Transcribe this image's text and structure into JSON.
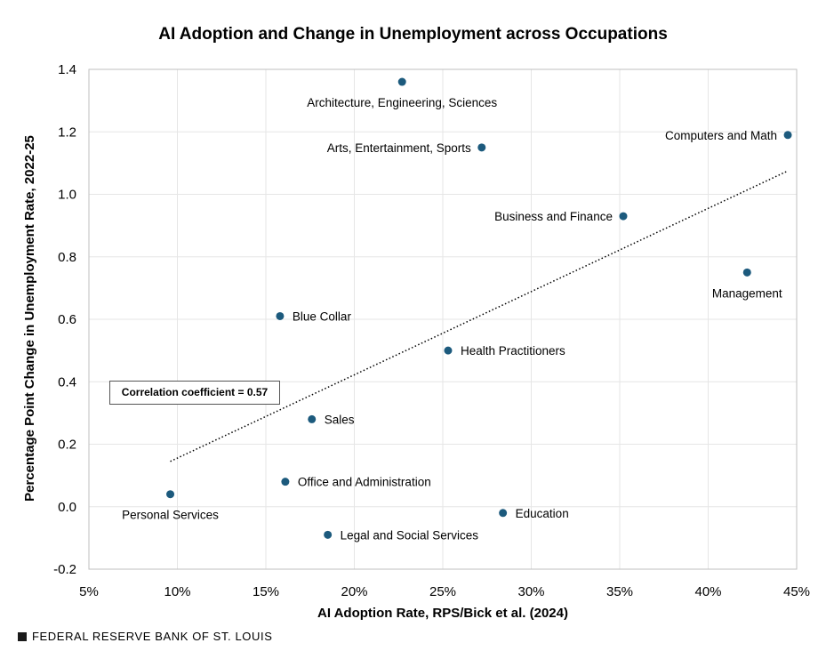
{
  "chart_data": {
    "type": "scatter",
    "title": "AI Adoption and Change in Unemployment across Occupations",
    "xlabel": "AI Adoption Rate, RPS/Bick et al. (2024)",
    "ylabel": "Percentage Point Change in Unemployment Rate, 2022-25",
    "xlim": [
      5,
      45
    ],
    "ylim": [
      -0.2,
      1.4
    ],
    "x_ticks": [
      5,
      10,
      15,
      20,
      25,
      30,
      35,
      40,
      45
    ],
    "x_tick_labels": [
      "5%",
      "10%",
      "15%",
      "20%",
      "25%",
      "30%",
      "35%",
      "40%",
      "45%"
    ],
    "y_ticks": [
      -0.2,
      0.0,
      0.2,
      0.4,
      0.6,
      0.8,
      1.0,
      1.2,
      1.4
    ],
    "y_tick_labels": [
      "-0.2",
      "0.0",
      "0.2",
      "0.4",
      "0.6",
      "0.8",
      "1.0",
      "1.2",
      "1.4"
    ],
    "grid": true,
    "point_color": "#1c5a7d",
    "points": [
      {
        "label": "Architecture, Engineering, Sciences",
        "x": 22.7,
        "y": 1.36,
        "label_pos": "below"
      },
      {
        "label": "Arts, Entertainment, Sports",
        "x": 27.2,
        "y": 1.15,
        "label_pos": "left"
      },
      {
        "label": "Computers and Math",
        "x": 44.5,
        "y": 1.19,
        "label_pos": "left"
      },
      {
        "label": "Business and Finance",
        "x": 35.2,
        "y": 0.93,
        "label_pos": "left"
      },
      {
        "label": "Management",
        "x": 42.2,
        "y": 0.75,
        "label_pos": "below"
      },
      {
        "label": "Blue Collar",
        "x": 15.8,
        "y": 0.61,
        "label_pos": "right"
      },
      {
        "label": "Health Practitioners",
        "x": 25.3,
        "y": 0.5,
        "label_pos": "right"
      },
      {
        "label": "Sales",
        "x": 17.6,
        "y": 0.28,
        "label_pos": "right"
      },
      {
        "label": "Office and Administration",
        "x": 16.1,
        "y": 0.08,
        "label_pos": "right"
      },
      {
        "label": "Personal Services",
        "x": 9.6,
        "y": 0.04,
        "label_pos": "below"
      },
      {
        "label": "Education",
        "x": 28.4,
        "y": -0.02,
        "label_pos": "right"
      },
      {
        "label": "Legal and Social Services",
        "x": 18.5,
        "y": -0.09,
        "label_pos": "right"
      }
    ],
    "trendline": {
      "style": "dotted",
      "x": [
        9.6,
        44.5
      ],
      "y": [
        0.145,
        1.075
      ]
    },
    "annotation": "Correlation coefficient = 0.57"
  },
  "footer": {
    "source": "FEDERAL RESERVE BANK OF ST. LOUIS"
  }
}
